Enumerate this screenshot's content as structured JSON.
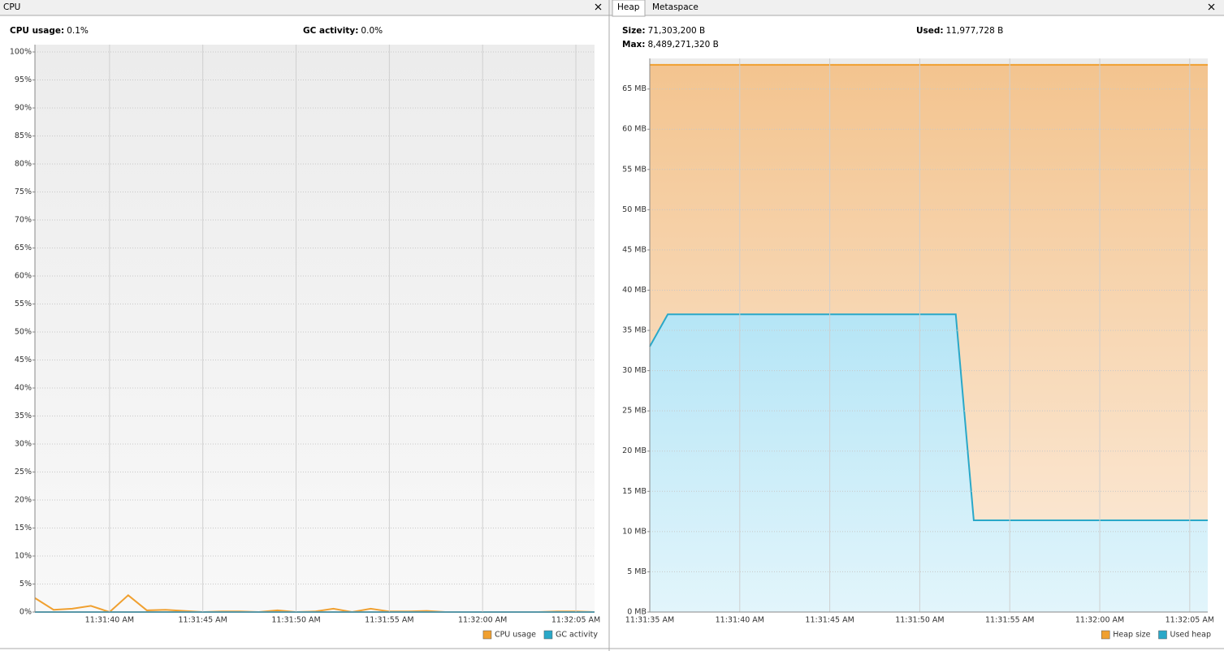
{
  "panels": [
    {
      "tabs": [
        "CPU"
      ],
      "stats": [
        {
          "label": "CPU usage:",
          "value": "0.1%"
        },
        {
          "label": "GC activity:",
          "value": "0.0%"
        }
      ]
    },
    {
      "tabs": [
        "Heap",
        "Metaspace"
      ],
      "stats": [
        {
          "label": "Size:",
          "value": "71,303,200 B"
        },
        {
          "label": "Used:",
          "value": "11,977,728 B"
        },
        {
          "label": "Max:",
          "value": "8,489,271,320 B"
        }
      ]
    }
  ],
  "chart_data": [
    {
      "type": "line",
      "legend": "bottom-right",
      "grid": true,
      "x": [
        41496,
        41497,
        41498,
        41499,
        41500,
        41501,
        41502,
        41503,
        41504,
        41505,
        41506,
        41507,
        41508,
        41509,
        41510,
        41511,
        41512,
        41513,
        41514,
        41515,
        41516,
        41517,
        41518,
        41519,
        41520,
        41521,
        41522,
        41523,
        41524,
        41525,
        41526
      ],
      "xlim": [
        41496,
        41526
      ],
      "xticks": [
        {
          "value": 41500,
          "label": "11:31:40 AM"
        },
        {
          "value": 41505,
          "label": "11:31:45 AM"
        },
        {
          "value": 41510,
          "label": "11:31:50 AM"
        },
        {
          "value": 41515,
          "label": "11:31:55 AM"
        },
        {
          "value": 41520,
          "label": "11:32:00 AM"
        },
        {
          "value": 41525,
          "label": "11:32:05 AM"
        }
      ],
      "ylim": [
        0,
        100
      ],
      "yticks": [
        {
          "value": 0,
          "label": "0%"
        },
        {
          "value": 5,
          "label": "5%"
        },
        {
          "value": 10,
          "label": "10%"
        },
        {
          "value": 15,
          "label": "15%"
        },
        {
          "value": 20,
          "label": "20%"
        },
        {
          "value": 25,
          "label": "25%"
        },
        {
          "value": 30,
          "label": "30%"
        },
        {
          "value": 35,
          "label": "35%"
        },
        {
          "value": 40,
          "label": "40%"
        },
        {
          "value": 45,
          "label": "45%"
        },
        {
          "value": 50,
          "label": "50%"
        },
        {
          "value": 55,
          "label": "55%"
        },
        {
          "value": 60,
          "label": "60%"
        },
        {
          "value": 65,
          "label": "65%"
        },
        {
          "value": 70,
          "label": "70%"
        },
        {
          "value": 75,
          "label": "75%"
        },
        {
          "value": 80,
          "label": "80%"
        },
        {
          "value": 85,
          "label": "85%"
        },
        {
          "value": 90,
          "label": "90%"
        },
        {
          "value": 95,
          "label": "95%"
        },
        {
          "value": 100,
          "label": "100%"
        }
      ],
      "series": [
        {
          "name": "CPU usage",
          "color": "#f0a030",
          "values": [
            2.5,
            0.4,
            0.6,
            1.1,
            0,
            3.0,
            0.3,
            0.4,
            0.2,
            0,
            0.1,
            0.1,
            0,
            0.3,
            0,
            0.1,
            0.6,
            0,
            0.6,
            0.1,
            0.1,
            0.2,
            0,
            0,
            0,
            0,
            0,
            0,
            0.1,
            0.1,
            0
          ]
        },
        {
          "name": "GC activity",
          "color": "#2aa8c8",
          "values": [
            0,
            0,
            0,
            0,
            0,
            0,
            0,
            0,
            0,
            0,
            0,
            0,
            0,
            0,
            0,
            0,
            0,
            0,
            0,
            0,
            0,
            0,
            0,
            0,
            0,
            0,
            0,
            0,
            0,
            0,
            0
          ]
        }
      ]
    },
    {
      "type": "area",
      "legend": "bottom-right",
      "grid": true,
      "x": [
        41495,
        41496,
        41497,
        41498,
        41499,
        41500,
        41501,
        41502,
        41503,
        41504,
        41505,
        41506,
        41507,
        41508,
        41509,
        41510,
        41511,
        41512,
        41513,
        41514,
        41515,
        41516,
        41517,
        41518,
        41519,
        41520,
        41521,
        41522,
        41523,
        41524,
        41525,
        41526
      ],
      "xlim": [
        41495,
        41526
      ],
      "xticks": [
        {
          "value": 41495,
          "label": "11:31:35 AM"
        },
        {
          "value": 41500,
          "label": "11:31:40 AM"
        },
        {
          "value": 41505,
          "label": "11:31:45 AM"
        },
        {
          "value": 41510,
          "label": "11:31:50 AM"
        },
        {
          "value": 41515,
          "label": "11:31:55 AM"
        },
        {
          "value": 41520,
          "label": "11:32:00 AM"
        },
        {
          "value": 41525,
          "label": "11:32:05 AM"
        }
      ],
      "ylim": [
        0,
        69
      ],
      "yticks": [
        {
          "value": 0,
          "label": "0 MB"
        },
        {
          "value": 5,
          "label": "5 MB"
        },
        {
          "value": 10,
          "label": "10 MB"
        },
        {
          "value": 15,
          "label": "15 MB"
        },
        {
          "value": 20,
          "label": "20 MB"
        },
        {
          "value": 25,
          "label": "25 MB"
        },
        {
          "value": 30,
          "label": "30 MB"
        },
        {
          "value": 35,
          "label": "35 MB"
        },
        {
          "value": 40,
          "label": "40 MB"
        },
        {
          "value": 45,
          "label": "45 MB"
        },
        {
          "value": 50,
          "label": "50 MB"
        },
        {
          "value": 55,
          "label": "55 MB"
        },
        {
          "value": 60,
          "label": "60 MB"
        },
        {
          "value": 65,
          "label": "65 MB"
        }
      ],
      "series": [
        {
          "name": "Heap size",
          "color": "#f0a030",
          "values": [
            68,
            68,
            68,
            68,
            68,
            68,
            68,
            68,
            68,
            68,
            68,
            68,
            68,
            68,
            68,
            68,
            68,
            68,
            68,
            68,
            68,
            68,
            68,
            68,
            68,
            68,
            68,
            68,
            68,
            68,
            68,
            68
          ]
        },
        {
          "name": "Used heap",
          "color": "#2aa8c8",
          "values": [
            33,
            37,
            37,
            37,
            37,
            37,
            37,
            37,
            37,
            37,
            37,
            37,
            37,
            37,
            37,
            37,
            37,
            37,
            11.4,
            11.4,
            11.4,
            11.4,
            11.4,
            11.4,
            11.4,
            11.4,
            11.4,
            11.4,
            11.4,
            11.4,
            11.4,
            11.4
          ]
        }
      ]
    }
  ]
}
